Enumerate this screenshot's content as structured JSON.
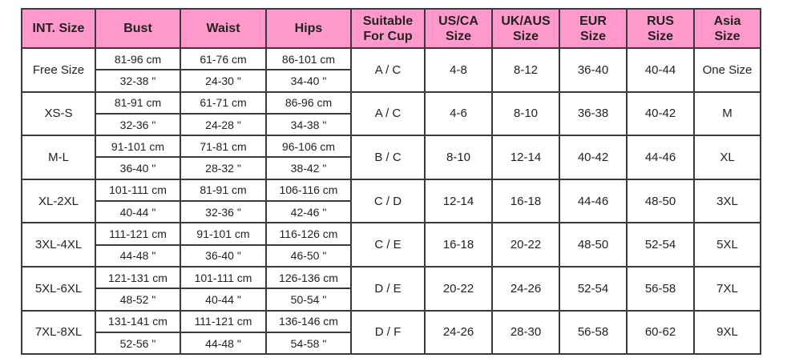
{
  "header_color": "#ff99cc",
  "headers": [
    "INT. Size",
    "Bust",
    "Waist",
    "Hips",
    "Suitable\nFor Cup",
    "US/CA\nSize",
    "UK/AUS\nSize",
    "EUR\nSize",
    "RUS\nSize",
    "Asia\nSize"
  ],
  "rows": [
    {
      "int": "Free Size",
      "bust_cm": "81-96 cm",
      "bust_in": "32-38 \"",
      "waist_cm": "61-76 cm",
      "waist_in": "24-30 \"",
      "hips_cm": "86-101 cm",
      "hips_in": "34-40 \"",
      "cup": "A / C",
      "us": "4-8",
      "uk": "8-12",
      "eur": "36-40",
      "rus": "40-44",
      "asia": "One Size"
    },
    {
      "int": "XS-S",
      "bust_cm": "81-91 cm",
      "bust_in": "32-36 \"",
      "waist_cm": "61-71 cm",
      "waist_in": "24-28 \"",
      "hips_cm": "86-96 cm",
      "hips_in": "34-38 \"",
      "cup": "A / C",
      "us": "4-6",
      "uk": "8-10",
      "eur": "36-38",
      "rus": "40-42",
      "asia": "M"
    },
    {
      "int": "M-L",
      "bust_cm": "91-101 cm",
      "bust_in": "36-40 \"",
      "waist_cm": "71-81 cm",
      "waist_in": "28-32 \"",
      "hips_cm": "96-106 cm",
      "hips_in": "38-42 \"",
      "cup": "B / C",
      "us": "8-10",
      "uk": "12-14",
      "eur": "40-42",
      "rus": "44-46",
      "asia": "XL"
    },
    {
      "int": "XL-2XL",
      "bust_cm": "101-111 cm",
      "bust_in": "40-44 \"",
      "waist_cm": "81-91 cm",
      "waist_in": "32-36 \"",
      "hips_cm": "106-116 cm",
      "hips_in": "42-46 \"",
      "cup": "C / D",
      "us": "12-14",
      "uk": "16-18",
      "eur": "44-46",
      "rus": "48-50",
      "asia": "3XL"
    },
    {
      "int": "3XL-4XL",
      "bust_cm": "111-121 cm",
      "bust_in": "44-48 \"",
      "waist_cm": "91-101 cm",
      "waist_in": "36-40 \"",
      "hips_cm": "116-126 cm",
      "hips_in": "46-50 \"",
      "cup": "C / E",
      "us": "16-18",
      "uk": "20-22",
      "eur": "48-50",
      "rus": "52-54",
      "asia": "5XL"
    },
    {
      "int": "5XL-6XL",
      "bust_cm": "121-131 cm",
      "bust_in": "48-52 \"",
      "waist_cm": "101-111 cm",
      "waist_in": "40-44 \"",
      "hips_cm": "126-136 cm",
      "hips_in": "50-54 \"",
      "cup": "D / E",
      "us": "20-22",
      "uk": "24-26",
      "eur": "52-54",
      "rus": "56-58",
      "asia": "7XL"
    },
    {
      "int": "7XL-8XL",
      "bust_cm": "131-141 cm",
      "bust_in": "52-56 \"",
      "waist_cm": "111-121 cm",
      "waist_in": "44-48 \"",
      "hips_cm": "136-146 cm",
      "hips_in": "54-58 \"",
      "cup": "D / F",
      "us": "24-26",
      "uk": "28-30",
      "eur": "56-58",
      "rus": "60-62",
      "asia": "9XL"
    }
  ]
}
